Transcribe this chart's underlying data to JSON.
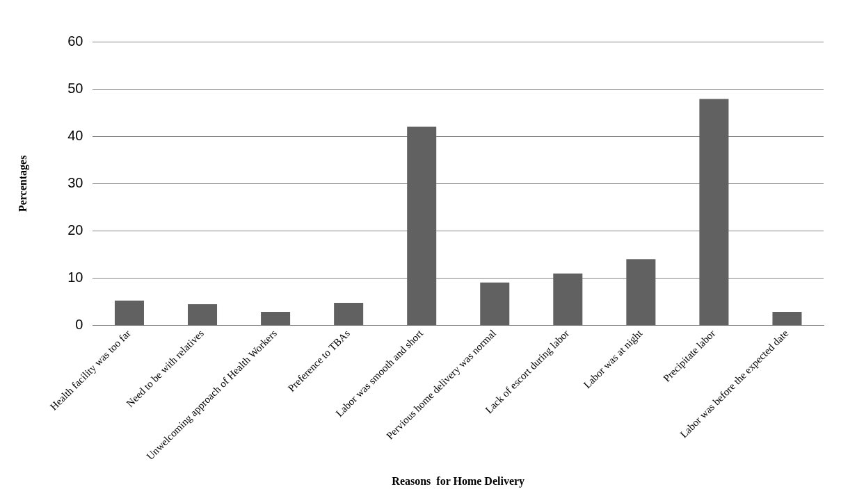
{
  "chart_data": {
    "type": "bar",
    "xlabel": "Reasons  for Home Delivery",
    "ylabel": "Percentages",
    "categories": [
      "Health facility was too far",
      "Need to be with relatives",
      "Unwelcoming approach of Health Workers",
      "Preference to TBAs",
      "Labor was smooth and short",
      "Pervious home delivery was normal",
      "Lack of escort during labor",
      "Labor was at night",
      "Precipitate labor",
      "Labor was before the expected date"
    ],
    "values": [
      5.3,
      4.5,
      2.9,
      4.8,
      42,
      9.1,
      11,
      14,
      47.9,
      2.9
    ],
    "color": "#616161",
    "ylim": [
      0,
      60
    ],
    "yticks": [
      0,
      10,
      20,
      30,
      40,
      50,
      60
    ],
    "grid": "y",
    "legend": false
  }
}
